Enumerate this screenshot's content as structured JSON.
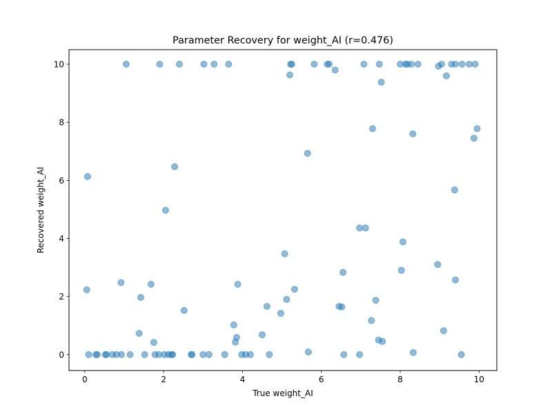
{
  "chart_data": {
    "type": "scatter",
    "title": "Parameter Recovery for weight_AI (r=0.476)",
    "xlabel": "True weight_AI",
    "ylabel": "Recovered weight_AI",
    "xlim": [
      -0.4,
      10.45
    ],
    "ylim": [
      -0.55,
      10.5
    ],
    "xticks": [
      "0",
      "2",
      "4",
      "6",
      "8",
      "10"
    ],
    "yticks": [
      "0",
      "2",
      "4",
      "6",
      "8",
      "10"
    ],
    "grid": false,
    "legend": "none",
    "color": "#1f77b4",
    "points": [
      {
        "x": 0.05,
        "y": 2.23
      },
      {
        "x": 0.07,
        "y": 6.13
      },
      {
        "x": 0.1,
        "y": 0.0
      },
      {
        "x": 0.28,
        "y": 0.0
      },
      {
        "x": 0.32,
        "y": 0.0
      },
      {
        "x": 0.52,
        "y": 0.0
      },
      {
        "x": 0.55,
        "y": 0.0
      },
      {
        "x": 0.7,
        "y": 0.0
      },
      {
        "x": 0.8,
        "y": 0.0
      },
      {
        "x": 0.92,
        "y": 2.48
      },
      {
        "x": 0.93,
        "y": 0.0
      },
      {
        "x": 1.05,
        "y": 10.0
      },
      {
        "x": 1.15,
        "y": 0.0
      },
      {
        "x": 1.38,
        "y": 0.73
      },
      {
        "x": 1.42,
        "y": 1.97
      },
      {
        "x": 1.52,
        "y": 0.0
      },
      {
        "x": 1.68,
        "y": 2.42
      },
      {
        "x": 1.75,
        "y": 0.42
      },
      {
        "x": 1.78,
        "y": 0.0
      },
      {
        "x": 1.88,
        "y": 0.0
      },
      {
        "x": 1.9,
        "y": 10.0
      },
      {
        "x": 2.02,
        "y": 0.0
      },
      {
        "x": 2.05,
        "y": 4.97
      },
      {
        "x": 2.12,
        "y": 0.0
      },
      {
        "x": 2.2,
        "y": 0.0
      },
      {
        "x": 2.23,
        "y": 0.0
      },
      {
        "x": 2.28,
        "y": 6.47
      },
      {
        "x": 2.4,
        "y": 10.0
      },
      {
        "x": 2.52,
        "y": 1.52
      },
      {
        "x": 2.7,
        "y": 0.0
      },
      {
        "x": 2.72,
        "y": 0.0
      },
      {
        "x": 3.0,
        "y": 0.0
      },
      {
        "x": 3.02,
        "y": 10.0
      },
      {
        "x": 3.15,
        "y": 0.0
      },
      {
        "x": 3.28,
        "y": 10.0
      },
      {
        "x": 3.55,
        "y": 0.0
      },
      {
        "x": 3.65,
        "y": 10.0
      },
      {
        "x": 3.78,
        "y": 1.02
      },
      {
        "x": 3.82,
        "y": 0.43
      },
      {
        "x": 3.85,
        "y": 0.59
      },
      {
        "x": 3.88,
        "y": 2.42
      },
      {
        "x": 3.98,
        "y": 0.0
      },
      {
        "x": 4.08,
        "y": 0.0
      },
      {
        "x": 4.2,
        "y": 0.0
      },
      {
        "x": 4.5,
        "y": 0.68
      },
      {
        "x": 4.62,
        "y": 1.66
      },
      {
        "x": 4.68,
        "y": 0.0
      },
      {
        "x": 4.97,
        "y": 1.42
      },
      {
        "x": 5.07,
        "y": 3.47
      },
      {
        "x": 5.12,
        "y": 1.9
      },
      {
        "x": 5.2,
        "y": 9.63
      },
      {
        "x": 5.22,
        "y": 10.0
      },
      {
        "x": 5.25,
        "y": 10.0
      },
      {
        "x": 5.32,
        "y": 2.25
      },
      {
        "x": 5.65,
        "y": 6.93
      },
      {
        "x": 5.67,
        "y": 0.09
      },
      {
        "x": 5.82,
        "y": 10.0
      },
      {
        "x": 6.15,
        "y": 10.0
      },
      {
        "x": 6.2,
        "y": 10.0
      },
      {
        "x": 6.35,
        "y": 9.8
      },
      {
        "x": 6.45,
        "y": 1.66
      },
      {
        "x": 6.52,
        "y": 1.64
      },
      {
        "x": 6.55,
        "y": 2.83
      },
      {
        "x": 6.57,
        "y": 0.0
      },
      {
        "x": 6.97,
        "y": 0.0
      },
      {
        "x": 6.97,
        "y": 4.36
      },
      {
        "x": 7.08,
        "y": 10.0
      },
      {
        "x": 7.12,
        "y": 4.36
      },
      {
        "x": 7.27,
        "y": 1.17
      },
      {
        "x": 7.3,
        "y": 7.78
      },
      {
        "x": 7.38,
        "y": 1.87
      },
      {
        "x": 7.45,
        "y": 0.5
      },
      {
        "x": 7.47,
        "y": 10.0
      },
      {
        "x": 7.52,
        "y": 9.38
      },
      {
        "x": 7.55,
        "y": 0.45
      },
      {
        "x": 8.0,
        "y": 10.0
      },
      {
        "x": 8.03,
        "y": 2.9
      },
      {
        "x": 8.07,
        "y": 3.88
      },
      {
        "x": 8.13,
        "y": 10.0
      },
      {
        "x": 8.18,
        "y": 10.0
      },
      {
        "x": 8.28,
        "y": 10.0
      },
      {
        "x": 8.32,
        "y": 7.6
      },
      {
        "x": 8.33,
        "y": 0.07
      },
      {
        "x": 8.45,
        "y": 10.0
      },
      {
        "x": 8.95,
        "y": 3.1
      },
      {
        "x": 8.97,
        "y": 9.93
      },
      {
        "x": 9.05,
        "y": 10.0
      },
      {
        "x": 9.1,
        "y": 0.82
      },
      {
        "x": 9.17,
        "y": 9.6
      },
      {
        "x": 9.3,
        "y": 10.0
      },
      {
        "x": 9.38,
        "y": 5.67
      },
      {
        "x": 9.4,
        "y": 2.57
      },
      {
        "x": 9.4,
        "y": 10.0
      },
      {
        "x": 9.55,
        "y": 0.0
      },
      {
        "x": 9.57,
        "y": 10.0
      },
      {
        "x": 9.75,
        "y": 10.0
      },
      {
        "x": 9.87,
        "y": 7.45
      },
      {
        "x": 9.9,
        "y": 10.0
      },
      {
        "x": 9.95,
        "y": 7.78
      }
    ]
  }
}
